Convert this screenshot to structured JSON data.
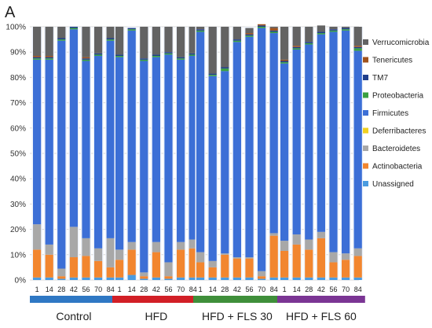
{
  "panel_label": "A",
  "chart_data": {
    "type": "bar",
    "stacked": true,
    "percent": true,
    "ylim": [
      0,
      100
    ],
    "yticks": [
      "0%",
      "10%",
      "20%",
      "30%",
      "40%",
      "50%",
      "60%",
      "70%",
      "80%",
      "90%",
      "100%"
    ],
    "grid": true,
    "legend_position": "right",
    "group_labels": [
      "Control",
      "HFD",
      "HFD + FLS 30",
      "HFD + FLS 60"
    ],
    "group_colors": [
      "#2f78c4",
      "#d21f26",
      "#3f8f3a",
      "#7b3594"
    ],
    "day_labels": [
      "1",
      "14",
      "28",
      "42",
      "56",
      "70",
      "84"
    ],
    "categories": [
      "Control 1",
      "Control 14",
      "Control 28",
      "Control 42",
      "Control 56",
      "Control 70",
      "Control 84",
      "HFD 1",
      "HFD 14",
      "HFD 28",
      "HFD 42",
      "HFD 56",
      "HFD 70",
      "HFD 84",
      "HFD + FLS 30 1",
      "HFD + FLS 30 14",
      "HFD + FLS 30 28",
      "HFD + FLS 30 42",
      "HFD + FLS 30 56",
      "HFD + FLS 30 70",
      "HFD + FLS 30 84",
      "HFD + FLS 60 1",
      "HFD + FLS 60 14",
      "HFD + FLS 60 28",
      "HFD + FLS 60 42",
      "HFD + FLS 60 56",
      "HFD + FLS 60 70",
      "HFD + FLS 60 84"
    ],
    "series": [
      {
        "name": "Unassigned",
        "color": "#4a9be0",
        "values": [
          1,
          1,
          0.5,
          1,
          1,
          1,
          1,
          1,
          2,
          0.5,
          1,
          0.5,
          1,
          1,
          1,
          1,
          1,
          1,
          1,
          0.5,
          1,
          1,
          1,
          1,
          1,
          1,
          1,
          1
        ]
      },
      {
        "name": "Actinobacteria",
        "color": "#f2862f",
        "values": [
          11,
          9,
          1,
          8,
          8.5,
          6.5,
          4,
          7,
          10,
          1,
          10,
          1,
          11,
          11.5,
          6,
          4,
          9,
          7.5,
          7.5,
          1,
          16.5,
          10.5,
          13,
          11,
          15.5,
          6,
          7,
          8.5
        ]
      },
      {
        "name": "Bacteroidetes",
        "color": "#a8a8a8",
        "values": [
          10,
          4,
          3,
          12,
          7,
          5,
          11.5,
          4,
          3,
          1.5,
          4,
          5.5,
          3,
          3.5,
          4,
          2.5,
          0.5,
          0.5,
          0.5,
          2,
          1,
          4,
          4,
          4,
          2.5,
          4,
          2.5,
          3
        ]
      },
      {
        "name": "Deferribacteres",
        "color": "#f0d020",
        "values": [
          0,
          0,
          0,
          0,
          0,
          0,
          0,
          0,
          0,
          0,
          0,
          0,
          0,
          0,
          0,
          0,
          0,
          0,
          0,
          0,
          0,
          0,
          0,
          0,
          0,
          0,
          0,
          0
        ]
      },
      {
        "name": "Firmicutes",
        "color": "#3c6fd6",
        "values": [
          65,
          73,
          90,
          78,
          70,
          76,
          78,
          76,
          83.5,
          83.5,
          73,
          82,
          72,
          72.5,
          87,
          73,
          72,
          85,
          87,
          96,
          79,
          70,
          73,
          77,
          78,
          87,
          88,
          78
        ]
      },
      {
        "name": "Proteobacteria",
        "color": "#3aa040",
        "values": [
          0.5,
          0.5,
          0.5,
          0.5,
          0.5,
          0.5,
          0.5,
          0.5,
          0.5,
          0.5,
          0.5,
          0.5,
          0.5,
          0.5,
          0.5,
          0.5,
          1,
          0.5,
          0.5,
          0.5,
          0.5,
          0.5,
          0.5,
          0.5,
          0.5,
          0.5,
          0.5,
          1
        ]
      },
      {
        "name": "TM7",
        "color": "#1f3f8c",
        "values": [
          0.5,
          0.5,
          0.5,
          0.5,
          0.5,
          0.5,
          0.5,
          0.5,
          0.5,
          0.5,
          0.5,
          0.5,
          0.5,
          0.5,
          0.5,
          0.5,
          0.5,
          0.5,
          0.5,
          0.5,
          0.5,
          0.5,
          0.5,
          0.5,
          0.5,
          0.5,
          0.5,
          0.5
        ]
      },
      {
        "name": "Tenericutes",
        "color": "#a0521c",
        "values": [
          0.5,
          0.5,
          0,
          0,
          0.5,
          0,
          0,
          0,
          0,
          0,
          0,
          0,
          0,
          0,
          0,
          0,
          0,
          0,
          0.5,
          0.5,
          1,
          0.5,
          0.5,
          0,
          0,
          0,
          0,
          0.5
        ]
      },
      {
        "name": "Verrucomicrobia",
        "color": "#636363",
        "values": [
          11.5,
          11.5,
          4.5,
          0,
          12,
          10.5,
          4.5,
          11,
          0,
          12.5,
          11,
          10,
          12,
          10.5,
          1,
          18.5,
          16,
          5,
          2,
          0,
          0.5,
          13,
          7.5,
          6,
          2.5,
          1,
          0.5,
          7.5
        ]
      }
    ]
  }
}
